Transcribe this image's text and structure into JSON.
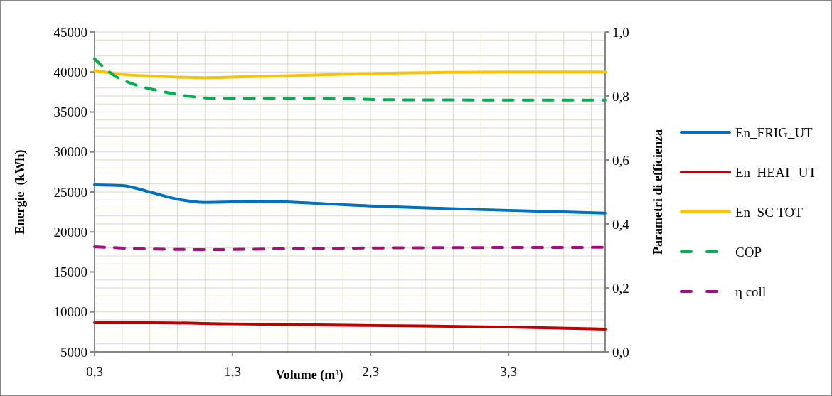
{
  "chart_data": {
    "type": "line",
    "xlabel": "Volume (m³)",
    "ylabel": "Energie  (kWh)",
    "y2label": "Parametri di efficienza",
    "xlim": [
      0.3,
      4.0
    ],
    "xticks": [
      {
        "value": 0.3,
        "label": "0,3"
      },
      {
        "value": 0.5,
        "label": null
      },
      {
        "value": 0.7,
        "label": null
      },
      {
        "value": 0.9,
        "label": null
      },
      {
        "value": 1.1,
        "label": null
      },
      {
        "value": 1.3,
        "label": "1,3"
      },
      {
        "value": 1.5,
        "label": null
      },
      {
        "value": 1.7,
        "label": null
      },
      {
        "value": 1.9,
        "label": null
      },
      {
        "value": 2.1,
        "label": null
      },
      {
        "value": 2.3,
        "label": "2,3"
      },
      {
        "value": 2.5,
        "label": null
      },
      {
        "value": 2.7,
        "label": null
      },
      {
        "value": 2.9,
        "label": null
      },
      {
        "value": 3.1,
        "label": null
      },
      {
        "value": 3.3,
        "label": "3,3"
      },
      {
        "value": 3.5,
        "label": null
      },
      {
        "value": 3.7,
        "label": null
      },
      {
        "value": 3.9,
        "label": null
      }
    ],
    "ylim": [
      5000,
      45000
    ],
    "yticks": [
      5000,
      10000,
      15000,
      20000,
      25000,
      30000,
      35000,
      40000,
      45000
    ],
    "y2lim": [
      0,
      1
    ],
    "y2ticks": [
      {
        "value": 0,
        "label": "0,0"
      },
      {
        "value": 0.2,
        "label": "0,2"
      },
      {
        "value": 0.4,
        "label": "0,4"
      },
      {
        "value": 0.6,
        "label": "0,6"
      },
      {
        "value": 0.8,
        "label": "0,8"
      },
      {
        "value": 1,
        "label": "1,0"
      }
    ],
    "grid": true,
    "legend": "right",
    "line_style": "solid",
    "marker": "none",
    "series": [
      {
        "name": "En_FRIG_UT",
        "color": "#0070c0",
        "x": [
          0.3,
          0.5,
          0.7,
          0.9,
          1.1,
          1.3,
          1.5,
          2.0,
          2.3,
          2.8,
          3.3,
          4.0
        ],
        "values": [
          25900,
          25800,
          25000,
          24100,
          23700,
          23750,
          23850,
          23500,
          23250,
          22950,
          22700,
          22350
        ]
      },
      {
        "name": "En_HEAT_UT",
        "color": "#c00000",
        "x": [
          0.3,
          0.7,
          1.3,
          2.3,
          3.3,
          4.0
        ],
        "values": [
          8650,
          8650,
          8500,
          8300,
          8100,
          7850
        ]
      },
      {
        "name": "En_SC TOT",
        "color": "#ffc000",
        "x": [
          0.3,
          0.5,
          0.7,
          1.1,
          1.6,
          2.3,
          3.3,
          4.0
        ],
        "values": [
          40200,
          39700,
          39500,
          39300,
          39500,
          39800,
          40000,
          40000
        ]
      },
      {
        "name": "COP",
        "color": "#00b050",
        "axis": "y2",
        "line_style": "dashed",
        "x": [
          0.3,
          0.45,
          0.59,
          0.77,
          0.94,
          1.16,
          1.9,
          2.5,
          4.0
        ],
        "values": [
          0.916,
          0.862,
          0.836,
          0.816,
          0.802,
          0.793,
          0.793,
          0.788,
          0.787
        ]
      },
      {
        "name": "η coll",
        "color": "#a50e82",
        "axis": "y2",
        "line_style": "dashed",
        "x": [
          0.3,
          0.7,
          1.1,
          1.6,
          2.3,
          4.0
        ],
        "values": [
          0.329,
          0.322,
          0.32,
          0.322,
          0.325,
          0.327
        ]
      }
    ]
  }
}
